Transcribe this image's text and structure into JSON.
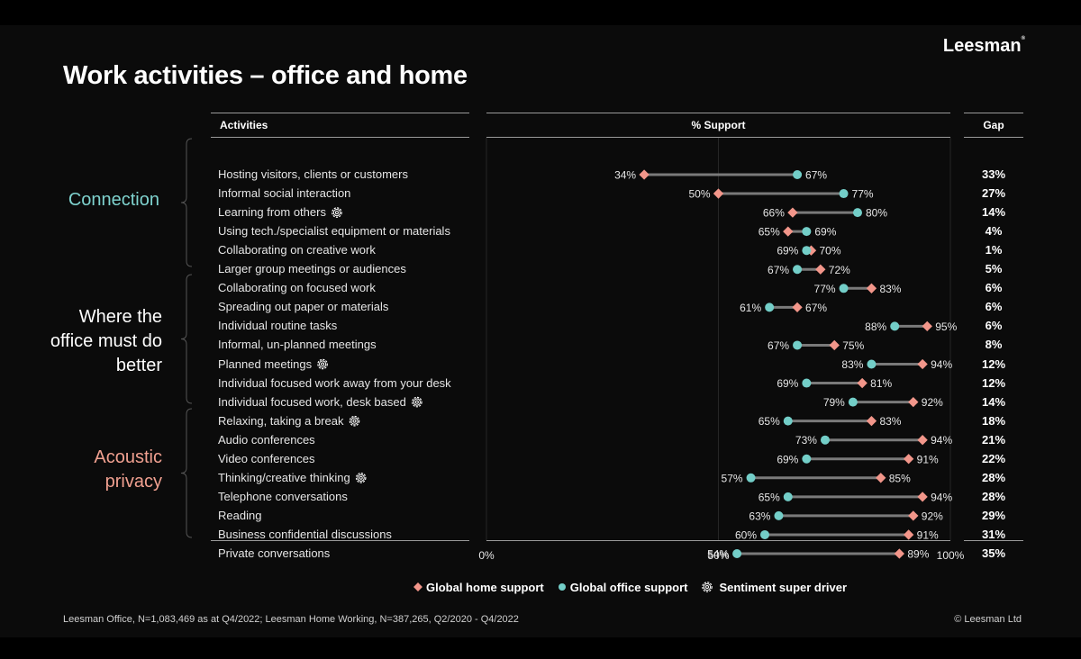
{
  "title": "Work activities – office  and home",
  "logo": "Leesman",
  "logo_mark": "®",
  "headers": {
    "activities": "Activities",
    "support": "% Support",
    "gap": "Gap"
  },
  "groups": [
    {
      "label": "Connection",
      "color": "#7fd3cf"
    },
    {
      "label": "Where the office must do better",
      "color": "#ffffff"
    },
    {
      "label": "Acoustic privacy",
      "color": "#f0a090"
    }
  ],
  "colors": {
    "home": "#f2968a",
    "office": "#73cec8",
    "connector": "#7a7a7a"
  },
  "legend": {
    "home": "Global home support",
    "office": "Global office support",
    "driver": "Sentiment super driver"
  },
  "footer": {
    "left": "Leesman Office, N=1,083,469 as at Q4/2022; Leesman Home Working, N=387,265, Q2/2020 - Q4/2022",
    "right": "© Leesman Ltd"
  },
  "chart_data": {
    "type": "dumbbell",
    "title": "% Support",
    "xlim": [
      0,
      100
    ],
    "ticks": [
      "0%",
      "50%",
      "100%"
    ],
    "rows": [
      {
        "activity": "Hosting visitors, clients or customers",
        "home": 34,
        "office": 67,
        "gap": "33%",
        "driver": false
      },
      {
        "activity": "Informal social interaction",
        "home": 50,
        "office": 77,
        "gap": "27%",
        "driver": false
      },
      {
        "activity": "Learning from others",
        "home": 66,
        "office": 80,
        "gap": "14%",
        "driver": true
      },
      {
        "activity": "Using tech./specialist equipment or materials",
        "home": 65,
        "office": 69,
        "gap": "4%",
        "driver": false
      },
      {
        "activity": "Collaborating on creative work",
        "home": 70,
        "office": 69,
        "gap": "1%",
        "driver": false
      },
      {
        "activity": "Larger group meetings or audiences",
        "home": 72,
        "office": 67,
        "gap": "5%",
        "driver": false
      },
      {
        "activity": "Collaborating on focused work",
        "home": 83,
        "office": 77,
        "gap": "6%",
        "driver": false
      },
      {
        "activity": "Spreading out paper or materials",
        "home": 67,
        "office": 61,
        "gap": "6%",
        "driver": false
      },
      {
        "activity": "Individual routine tasks",
        "home": 95,
        "office": 88,
        "gap": "6%",
        "driver": false
      },
      {
        "activity": "Informal, un-planned meetings",
        "home": 75,
        "office": 67,
        "gap": "8%",
        "driver": false
      },
      {
        "activity": "Planned meetings",
        "home": 94,
        "office": 83,
        "gap": "12%",
        "driver": true
      },
      {
        "activity": "Individual focused work away from your desk",
        "home": 81,
        "office": 69,
        "gap": "12%",
        "driver": false
      },
      {
        "activity": "Individual focused work, desk based",
        "home": 92,
        "office": 79,
        "gap": "14%",
        "driver": true
      },
      {
        "activity": "Relaxing, taking a break",
        "home": 83,
        "office": 65,
        "gap": "18%",
        "driver": true
      },
      {
        "activity": "Audio conferences",
        "home": 94,
        "office": 73,
        "gap": "21%",
        "driver": false
      },
      {
        "activity": "Video conferences",
        "home": 91,
        "office": 69,
        "gap": "22%",
        "driver": false
      },
      {
        "activity": "Thinking/creative thinking",
        "home": 85,
        "office": 57,
        "gap": "28%",
        "driver": true
      },
      {
        "activity": "Telephone conversations",
        "home": 94,
        "office": 65,
        "gap": "28%",
        "driver": false
      },
      {
        "activity": "Reading",
        "home": 92,
        "office": 63,
        "gap": "29%",
        "driver": false
      },
      {
        "activity": "Business confidential discussions",
        "home": 91,
        "office": 60,
        "gap": "31%",
        "driver": false
      },
      {
        "activity": "Private conversations",
        "home": 89,
        "office": 54,
        "gap": "35%",
        "driver": false
      }
    ]
  }
}
